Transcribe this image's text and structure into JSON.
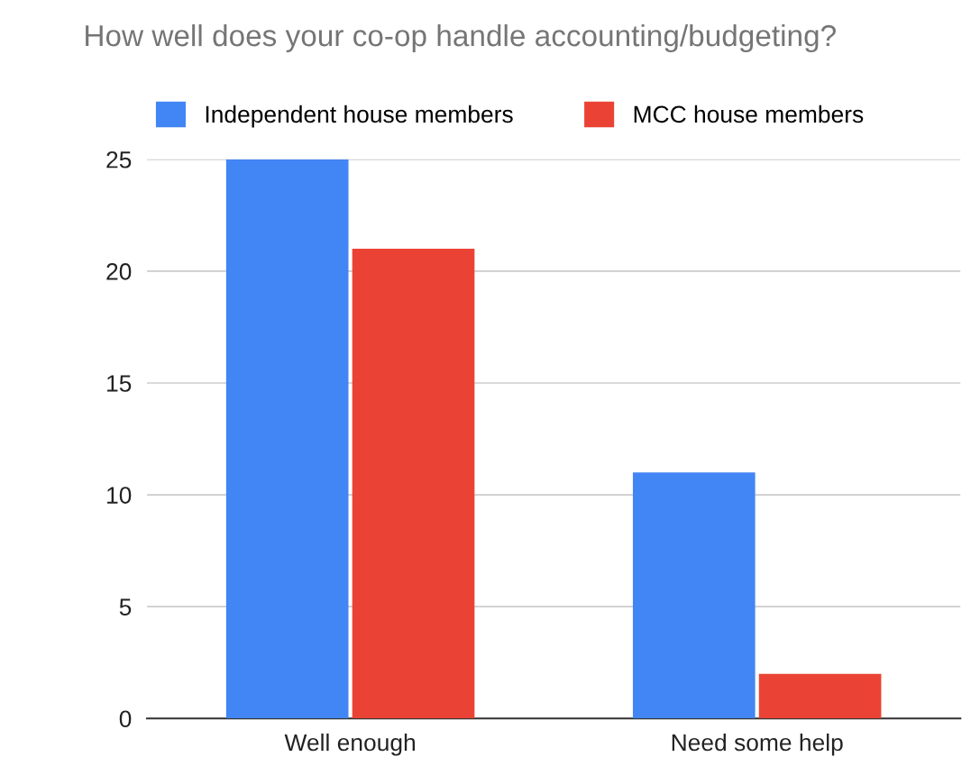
{
  "chart_data": {
    "type": "bar",
    "title": "How well does your co-op handle accounting/budgeting?",
    "categories": [
      "Well enough",
      "Need some help"
    ],
    "series": [
      {
        "name": "Independent house members",
        "color": "#4285f4",
        "values": [
          25,
          11
        ]
      },
      {
        "name": "MCC house members",
        "color": "#ea4335",
        "values": [
          21,
          2
        ]
      }
    ],
    "ylim": [
      0,
      25
    ],
    "yticks": [
      0,
      5,
      10,
      15,
      20,
      25
    ],
    "grid": "y",
    "legend": "top left"
  }
}
